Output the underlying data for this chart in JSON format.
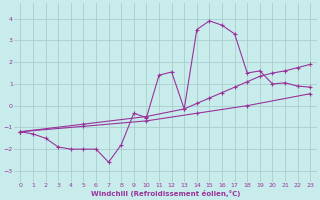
{
  "xlabel": "Windchill (Refroidissement éolien,°C)",
  "bg_color": "#c8ecec",
  "line_color": "#993399",
  "grid_color": "#aacccc",
  "xlim": [
    -0.5,
    23.5
  ],
  "ylim": [
    -3.5,
    4.7
  ],
  "yticks": [
    -3,
    -2,
    -1,
    0,
    1,
    2,
    3,
    4
  ],
  "xticks": [
    0,
    1,
    2,
    3,
    4,
    5,
    6,
    7,
    8,
    9,
    10,
    11,
    12,
    13,
    14,
    15,
    16,
    17,
    18,
    19,
    20,
    21,
    22,
    23
  ],
  "curve_x": [
    0,
    1,
    2,
    3,
    4,
    5,
    6,
    7,
    8,
    9,
    10,
    11,
    12,
    13,
    14,
    15,
    16,
    17,
    18,
    19,
    20,
    21,
    22,
    23
  ],
  "curve_y": [
    -1.2,
    -1.3,
    -1.5,
    -1.9,
    -2.0,
    -2.0,
    -2.0,
    -2.6,
    -1.8,
    -0.35,
    -0.55,
    1.4,
    1.55,
    -0.15,
    3.5,
    3.9,
    3.7,
    3.3,
    1.5,
    1.6,
    1.0,
    1.05,
    0.9,
    0.85
  ],
  "line_upper_x": [
    0,
    5,
    10,
    13,
    14,
    15,
    16,
    17,
    18,
    19,
    20,
    21,
    22,
    23
  ],
  "line_upper_y": [
    -1.2,
    -0.85,
    -0.5,
    -0.15,
    0.1,
    0.35,
    0.6,
    0.85,
    1.1,
    1.35,
    1.5,
    1.6,
    1.75,
    1.9
  ],
  "line_lower_x": [
    0,
    5,
    10,
    14,
    18,
    23
  ],
  "line_lower_y": [
    -1.2,
    -0.95,
    -0.7,
    -0.35,
    0.0,
    0.55
  ]
}
